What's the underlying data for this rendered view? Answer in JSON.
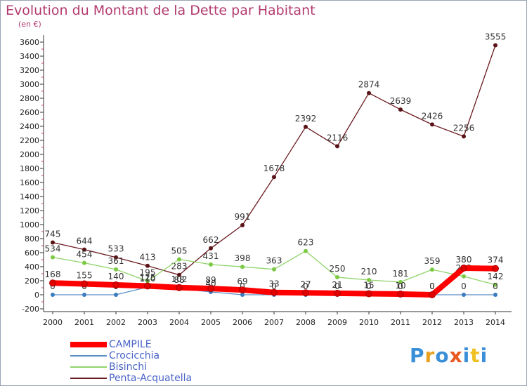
{
  "chart_data": {
    "type": "line",
    "title": "Evolution du Montant de la Dette par Habitant",
    "subtitle": "(en €)",
    "categories": [
      "2000",
      "2001",
      "2002",
      "2003",
      "2004",
      "2005",
      "2006",
      "2007",
      "2008",
      "2009",
      "2010",
      "2011",
      "2012",
      "2013",
      "2014"
    ],
    "y_ticks": [
      -200,
      0,
      200,
      400,
      600,
      800,
      1000,
      1200,
      1400,
      1600,
      1800,
      2000,
      2200,
      2400,
      2600,
      2800,
      3000,
      3200,
      3400,
      3600
    ],
    "ylim": [
      -200,
      3700
    ],
    "grid": false,
    "legend_position": "bottom-left",
    "series": [
      {
        "name": "Penta-Acquatella",
        "color": "#6b1a1f",
        "marker": "#5a1418",
        "values": [
          745,
          644,
          533,
          413,
          283,
          662,
          991,
          1678,
          2392,
          2116,
          2874,
          2639,
          2426,
          2256,
          3555
        ],
        "labels": [
          "745",
          "644",
          "533",
          "413",
          "283",
          "662",
          "991",
          "1678",
          "2392",
          "2116",
          "2874",
          "2639",
          "2426",
          "2256",
          "3555"
        ]
      },
      {
        "name": "Bisinchi",
        "color": "#8fd46a",
        "marker": "#7cc943",
        "values": [
          534,
          454,
          361,
          195,
          505,
          431,
          398,
          363,
          623,
          250,
          210,
          181,
          359,
          262,
          142
        ],
        "labels": [
          "534",
          "454",
          "361",
          "195",
          "505",
          "431",
          "398",
          "363",
          "623",
          "250",
          "210",
          "181",
          "359",
          "262",
          "142"
        ]
      },
      {
        "name": "Crocicchia",
        "color": "#5b8ec4",
        "marker": "#3a7cc0",
        "values": [
          0,
          0,
          0,
          110,
          88,
          40,
          0,
          0,
          0,
          0,
          0,
          0,
          0,
          0,
          0
        ],
        "labels": [
          "0",
          "0",
          "0",
          "110",
          "88",
          "40",
          "0",
          "0",
          "0",
          "0",
          "0",
          "0",
          "0",
          "0",
          "0"
        ]
      },
      {
        "name": "CAMPILE",
        "color": "#ff0000",
        "marker": "#e00000",
        "values": [
          168,
          155,
          140,
          125,
          102,
          89,
          69,
          33,
          27,
          21,
          15,
          10,
          0,
          380,
          374
        ],
        "labels": [
          "168",
          "155",
          "140",
          "125",
          "102",
          "89",
          "69",
          "33",
          "27",
          "21",
          "15",
          "10",
          "0",
          "380",
          "374"
        ]
      }
    ]
  },
  "legend": [
    {
      "name": "CAMPILE",
      "color": "#ff0000"
    },
    {
      "name": "Crocicchia",
      "color": "#5b8ec4"
    },
    {
      "name": "Bisinchi",
      "color": "#8fd46a"
    },
    {
      "name": "Penta-Acquatella",
      "color": "#6b1a1f"
    }
  ],
  "logo": {
    "letters": [
      "P",
      "r",
      "o",
      "x",
      "i",
      "t",
      "i"
    ],
    "colors": [
      "#3a8fd8",
      "#e8a020",
      "#3a8fd8",
      "#e85820",
      "#3a8fd8",
      "#f0c020",
      "#3a8fd8"
    ]
  }
}
